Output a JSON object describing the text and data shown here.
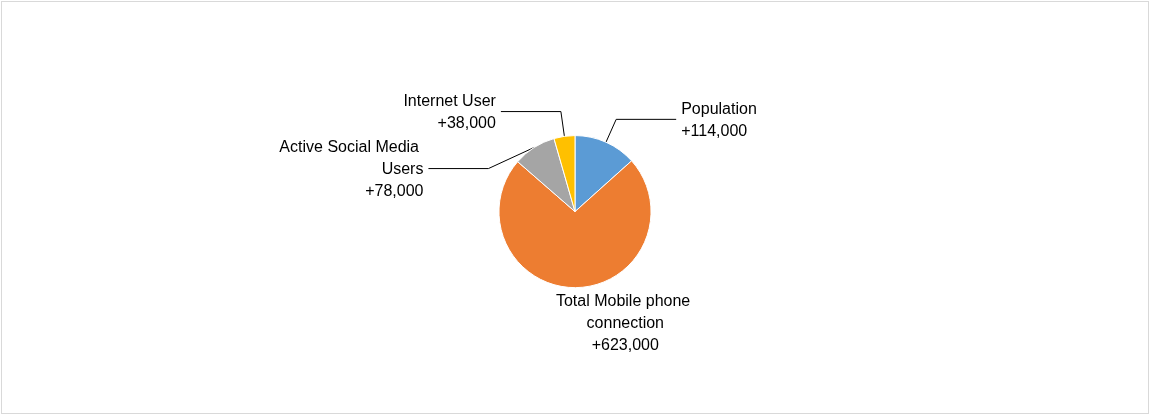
{
  "chart_data": {
    "type": "pie",
    "categories": [
      "Population",
      "Total Mobile phone connection",
      "Active Social Media Users",
      "Internet User"
    ],
    "values": [
      114000,
      623000,
      78000,
      38000
    ],
    "value_labels": [
      "+114,000",
      "+623,000",
      "+78,000",
      "+38,000"
    ],
    "colors": [
      "#5b9bd5",
      "#ed7d31",
      "#a5a5a5",
      "#ffc000"
    ],
    "legend": false
  }
}
